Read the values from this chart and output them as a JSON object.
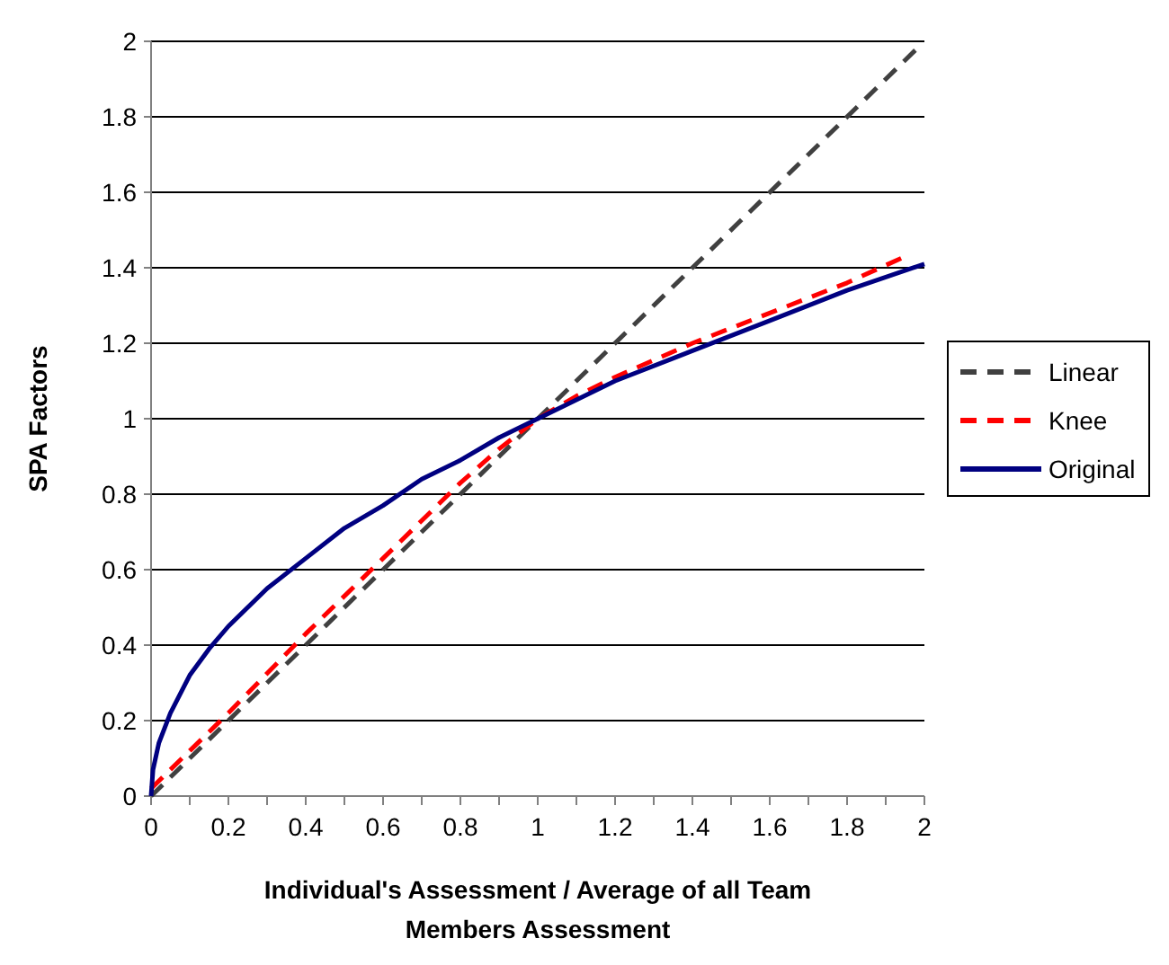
{
  "chart_data": {
    "type": "line",
    "xlabel": "Individual's Assessment / Average of all Team Members Assessment",
    "ylabel": "SPA Factors",
    "xlim": [
      0,
      2
    ],
    "ylim": [
      0,
      2
    ],
    "xticks": [
      0,
      {
        "value": 0.1,
        "label": null
      },
      0.2,
      {
        "value": 0.3,
        "label": null
      },
      0.4,
      {
        "value": 0.5,
        "label": null
      },
      0.6,
      {
        "value": 0.7,
        "label": null
      },
      0.8,
      {
        "value": 0.9,
        "label": null
      },
      1,
      {
        "value": 1.1,
        "label": null
      },
      1.2,
      {
        "value": 1.3,
        "label": null
      },
      1.4,
      {
        "value": 1.5,
        "label": null
      },
      1.6,
      {
        "value": 1.7,
        "label": null
      },
      1.8,
      {
        "value": 1.9,
        "label": null
      },
      2
    ],
    "yticks": [
      0,
      0.2,
      0.4,
      0.6,
      0.8,
      1,
      1.2,
      1.4,
      1.6,
      1.8,
      2
    ],
    "grid": "y",
    "legend": "right",
    "marker": "none",
    "series": [
      {
        "name": "Linear",
        "color": "#404040",
        "line_style": "dashed",
        "x": [
          0,
          1.98
        ],
        "values": [
          0,
          1.98
        ]
      },
      {
        "name": "Knee",
        "color": "#ff0000",
        "line_style": "dashed",
        "x": [
          0,
          0.1,
          0.2,
          0.4,
          0.6,
          0.8,
          0.9,
          1,
          1.1,
          1.2,
          1.4,
          1.6,
          1.8,
          1.95
        ],
        "values": [
          0.02,
          0.12,
          0.22,
          0.43,
          0.63,
          0.83,
          0.92,
          1,
          1.06,
          1.11,
          1.2,
          1.28,
          1.36,
          1.43
        ]
      },
      {
        "name": "Original",
        "color": "#000080",
        "line_style": "solid",
        "x": [
          0,
          0.005,
          0.02,
          0.05,
          0.1,
          0.15,
          0.2,
          0.3,
          0.4,
          0.5,
          0.6,
          0.7,
          0.8,
          0.9,
          1,
          1.2,
          1.4,
          1.6,
          1.8,
          2
        ],
        "values": [
          0,
          0.07,
          0.14,
          0.22,
          0.32,
          0.39,
          0.45,
          0.55,
          0.63,
          0.71,
          0.77,
          0.84,
          0.89,
          0.95,
          1,
          1.1,
          1.18,
          1.26,
          1.34,
          1.41
        ]
      }
    ]
  }
}
